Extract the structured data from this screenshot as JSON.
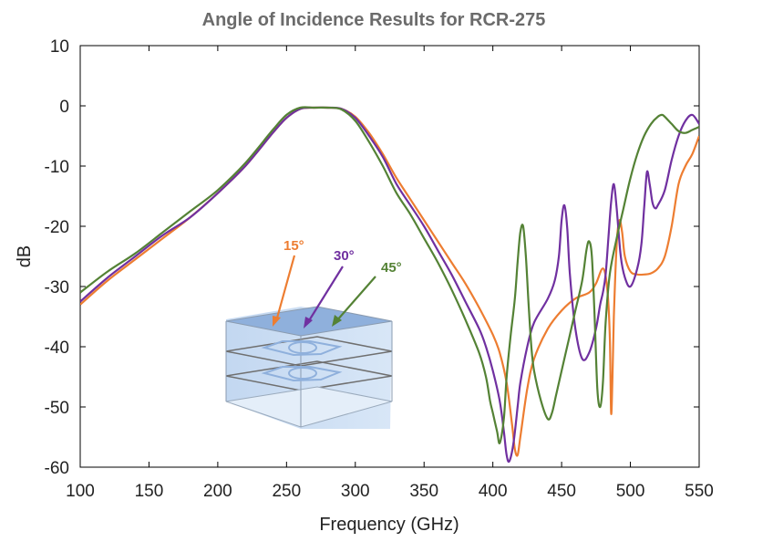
{
  "chart_data": {
    "type": "line",
    "title": "Angle of Incidence Results for RCR-275",
    "xlabel": "Frequency (GHz)",
    "ylabel": "dB",
    "xlim": [
      100,
      550
    ],
    "ylim": [
      -60,
      10
    ],
    "xticks": [
      100,
      150,
      200,
      250,
      300,
      350,
      400,
      450,
      500,
      550
    ],
    "yticks": [
      10,
      0,
      -10,
      -20,
      -30,
      -40,
      -50,
      -60
    ],
    "grid": false,
    "legend": "none",
    "annotations": [
      {
        "text": "15°",
        "color": "#ED7D31"
      },
      {
        "text": "30°",
        "color": "#7030A0"
      },
      {
        "text": "45°",
        "color": "#548235"
      }
    ],
    "series": [
      {
        "color": "#ED7D31",
        "x": [
          100,
          120,
          140,
          160,
          180,
          200,
          220,
          240,
          250,
          260,
          270,
          280,
          290,
          300,
          310,
          320,
          330,
          340,
          350,
          360,
          370,
          380,
          390,
          400,
          405,
          410,
          414,
          416,
          418,
          420,
          425,
          430,
          440,
          450,
          460,
          470,
          475,
          480,
          483,
          485,
          486,
          487,
          488,
          490,
          492,
          494,
          496,
          500,
          505,
          510,
          515,
          520,
          525,
          530,
          535,
          540,
          545,
          550
        ],
        "y": [
          -33,
          -29,
          -25.5,
          -22,
          -18.5,
          -14.5,
          -10,
          -4.5,
          -2,
          -0.5,
          -0.3,
          -0.3,
          -0.5,
          -1.8,
          -4.5,
          -8,
          -12,
          -15.5,
          -19,
          -22.5,
          -26,
          -29.5,
          -33.5,
          -38,
          -41,
          -46,
          -53,
          -57,
          -58,
          -55,
          -47,
          -42,
          -37,
          -34,
          -32,
          -31,
          -29.5,
          -27,
          -30,
          -38,
          -51,
          -45,
          -35,
          -23,
          -19,
          -21,
          -25,
          -27.5,
          -28,
          -28,
          -27.8,
          -27,
          -25,
          -20,
          -13,
          -10,
          -8,
          -5
        ]
      },
      {
        "color": "#7030A0",
        "x": [
          100,
          120,
          140,
          160,
          180,
          200,
          220,
          240,
          250,
          260,
          270,
          280,
          290,
          300,
          310,
          320,
          330,
          340,
          350,
          360,
          370,
          380,
          390,
          395,
          400,
          405,
          408,
          410,
          412,
          415,
          418,
          420,
          425,
          430,
          440,
          445,
          448,
          450,
          452,
          454,
          456,
          460,
          465,
          470,
          475,
          478,
          480,
          482,
          484,
          486,
          488,
          490,
          493,
          496,
          500,
          505,
          508,
          510,
          512,
          514,
          516,
          518,
          520,
          525,
          530,
          535,
          540,
          545,
          550
        ],
        "y": [
          -32.5,
          -28.5,
          -25,
          -21.5,
          -18.5,
          -14.5,
          -10,
          -4.5,
          -2,
          -0.5,
          -0.3,
          -0.3,
          -0.5,
          -2,
          -5,
          -8.5,
          -13,
          -16.5,
          -20,
          -24,
          -28,
          -32.5,
          -37,
          -40,
          -44,
          -49,
          -54,
          -58,
          -59,
          -56,
          -50,
          -46,
          -40,
          -36,
          -32,
          -29,
          -25,
          -19,
          -16.5,
          -20,
          -28,
          -37,
          -42,
          -41,
          -37,
          -33,
          -31,
          -28,
          -22,
          -16,
          -13,
          -17,
          -25,
          -28.5,
          -30,
          -27,
          -23,
          -17,
          -11,
          -13,
          -16,
          -17,
          -16.5,
          -14,
          -9,
          -5,
          -2.5,
          -1.5,
          -3
        ]
      },
      {
        "color": "#548235",
        "x": [
          100,
          120,
          140,
          160,
          180,
          200,
          220,
          240,
          250,
          260,
          270,
          280,
          290,
          300,
          310,
          320,
          330,
          340,
          350,
          360,
          370,
          380,
          390,
          395,
          398,
          400,
          403,
          405,
          408,
          410,
          413,
          416,
          418,
          420,
          422,
          424,
          426,
          428,
          430,
          435,
          440,
          443,
          446,
          450,
          455,
          460,
          465,
          468,
          470,
          472,
          474,
          476,
          478,
          480,
          482,
          485,
          490,
          495,
          500,
          505,
          510,
          515,
          520,
          523,
          525,
          530,
          535,
          540,
          545,
          550
        ],
        "y": [
          -31,
          -27.5,
          -24.5,
          -21,
          -17.5,
          -14,
          -9.5,
          -4,
          -1.5,
          -0.3,
          -0.3,
          -0.3,
          -0.6,
          -2.5,
          -6,
          -10,
          -14.5,
          -18,
          -22,
          -26,
          -30.5,
          -35.5,
          -41,
          -45,
          -49,
          -51,
          -54,
          -56,
          -52,
          -45,
          -38,
          -32,
          -26,
          -21,
          -20,
          -25,
          -33,
          -40,
          -44,
          -49,
          -52,
          -51,
          -48,
          -44,
          -39,
          -34,
          -29,
          -24,
          -22.5,
          -25,
          -35,
          -47,
          -50,
          -46,
          -36,
          -28,
          -22,
          -17,
          -12,
          -8,
          -5,
          -3,
          -1.8,
          -1.5,
          -1.8,
          -3,
          -4.2,
          -4.5,
          -4,
          -3.5
        ]
      }
    ]
  }
}
